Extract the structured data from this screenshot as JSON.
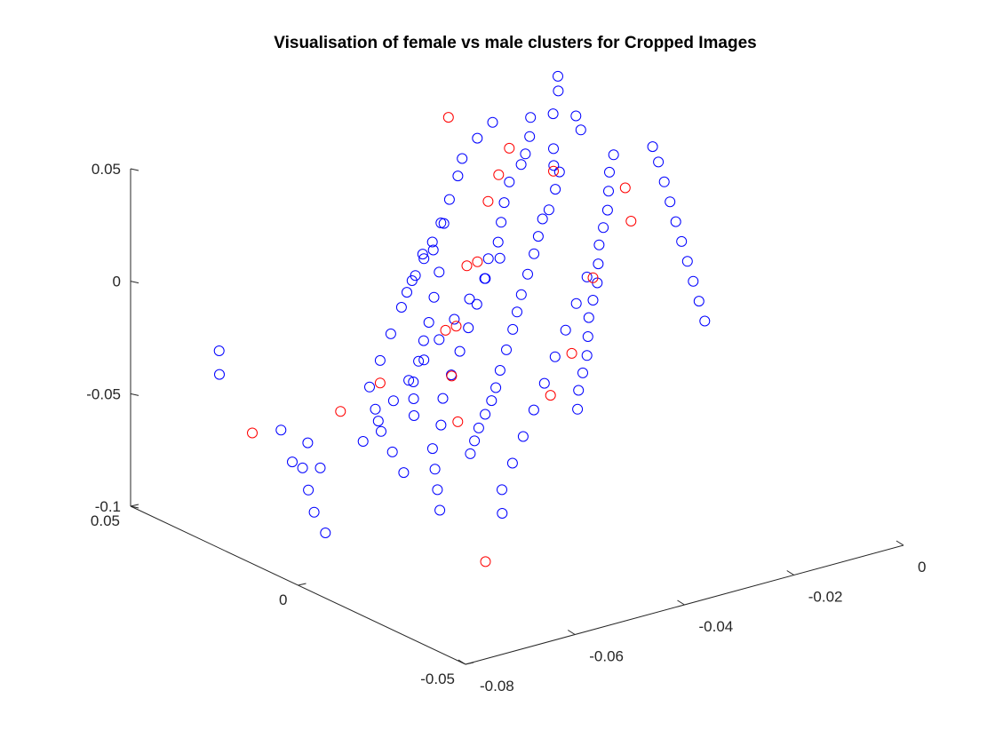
{
  "chart_data": {
    "type": "scatter",
    "projection": "3d",
    "title": "Visualisation of female vs male clusters for Cropped Images",
    "grid": false,
    "legend": "none",
    "marker": "open-circle",
    "axes": {
      "x": {
        "ticks": [
          -0.08,
          -0.06,
          -0.04,
          -0.02,
          0
        ],
        "tick_labels": [
          "-0.08",
          "-0.06",
          "-0.04",
          "-0.02",
          "0"
        ],
        "range": [
          -0.08,
          0
        ]
      },
      "y": {
        "ticks": [
          -0.05,
          0,
          0.05
        ],
        "tick_labels": [
          "-0.05",
          "0",
          "0.05"
        ],
        "range": [
          -0.05,
          0.05
        ]
      },
      "z": {
        "ticks": [
          -0.1,
          -0.05,
          0,
          0.05
        ],
        "tick_labels": [
          "-0.1",
          "-0.05",
          "0",
          "0.05"
        ],
        "range": [
          -0.1,
          0.05
        ]
      }
    },
    "series": [
      {
        "color": "#0000ff",
        "sampled": true,
        "points": [
          [
            -0.005,
            0.045,
            0.045
          ],
          [
            -0.008,
            0.04,
            0.044
          ],
          [
            -0.012,
            0.035,
            0.04
          ],
          [
            -0.006,
            0.038,
            0.033
          ],
          [
            -0.01,
            0.03,
            0.035
          ],
          [
            -0.015,
            0.03,
            0.03
          ],
          [
            -0.018,
            0.025,
            0.028
          ],
          [
            -0.02,
            0.02,
            0.03
          ],
          [
            -0.022,
            0.018,
            0.025
          ],
          [
            -0.025,
            0.015,
            0.02
          ],
          [
            -0.028,
            0.012,
            0.02
          ],
          [
            -0.03,
            0.01,
            0.015
          ],
          [
            -0.032,
            0.008,
            0.01
          ],
          [
            -0.035,
            0.005,
            0.005
          ],
          [
            -0.038,
            0.002,
            0.0
          ],
          [
            -0.04,
            0.0,
            -0.005
          ],
          [
            -0.042,
            -0.002,
            -0.01
          ],
          [
            -0.045,
            -0.005,
            -0.015
          ],
          [
            -0.048,
            -0.008,
            -0.02
          ],
          [
            -0.05,
            -0.01,
            -0.025
          ],
          [
            -0.052,
            -0.012,
            -0.028
          ],
          [
            -0.055,
            -0.015,
            -0.03
          ],
          [
            -0.058,
            -0.018,
            -0.032
          ],
          [
            -0.06,
            -0.02,
            -0.035
          ],
          [
            -0.062,
            -0.022,
            -0.038
          ],
          [
            -0.01,
            0.045,
            0.03
          ],
          [
            -0.012,
            0.042,
            0.025
          ],
          [
            -0.014,
            0.04,
            0.02
          ],
          [
            -0.016,
            0.038,
            0.018
          ],
          [
            -0.02,
            0.035,
            0.015
          ],
          [
            -0.024,
            0.03,
            0.012
          ],
          [
            -0.027,
            0.026,
            0.008
          ],
          [
            -0.03,
            0.022,
            0.004
          ],
          [
            -0.033,
            0.02,
            0.0
          ],
          [
            -0.036,
            0.016,
            -0.004
          ],
          [
            -0.04,
            0.012,
            -0.01
          ],
          [
            -0.044,
            0.008,
            -0.015
          ],
          [
            -0.048,
            0.004,
            -0.02
          ],
          [
            -0.052,
            0.0,
            -0.025
          ],
          [
            -0.056,
            -0.004,
            -0.03
          ],
          [
            -0.06,
            -0.01,
            -0.035
          ],
          [
            -0.064,
            -0.014,
            -0.04
          ],
          [
            -0.066,
            -0.018,
            -0.045
          ],
          [
            -0.068,
            -0.022,
            -0.05
          ],
          [
            -0.07,
            -0.026,
            -0.055
          ],
          [
            -0.004,
            0.03,
            0.02
          ],
          [
            -0.006,
            0.028,
            0.015
          ],
          [
            -0.008,
            0.025,
            0.01
          ],
          [
            -0.01,
            0.022,
            0.005
          ],
          [
            -0.012,
            0.02,
            0.0
          ],
          [
            -0.014,
            0.018,
            -0.005
          ],
          [
            -0.016,
            0.015,
            -0.01
          ],
          [
            -0.018,
            0.012,
            -0.015
          ],
          [
            -0.02,
            0.01,
            -0.02
          ],
          [
            -0.022,
            0.008,
            -0.025
          ],
          [
            -0.024,
            0.005,
            -0.03
          ],
          [
            -0.026,
            0.002,
            -0.035
          ],
          [
            -0.028,
            0.0,
            -0.04
          ],
          [
            -0.03,
            -0.002,
            -0.045
          ],
          [
            -0.032,
            -0.005,
            -0.05
          ],
          [
            -0.045,
            0.02,
            0.01
          ],
          [
            -0.05,
            0.015,
            0.005
          ],
          [
            -0.055,
            0.01,
            0.0
          ],
          [
            -0.06,
            0.005,
            -0.005
          ],
          [
            -0.065,
            0.0,
            -0.01
          ],
          [
            -0.07,
            -0.005,
            -0.015
          ],
          [
            -0.072,
            -0.01,
            -0.02
          ],
          [
            -0.074,
            -0.015,
            -0.025
          ],
          [
            -0.075,
            -0.02,
            -0.03
          ],
          [
            -0.076,
            -0.025,
            -0.035
          ],
          [
            -0.035,
            0.03,
            0.01
          ],
          [
            -0.04,
            0.025,
            0.005
          ],
          [
            -0.042,
            0.02,
            0.0
          ],
          [
            -0.046,
            0.015,
            -0.005
          ],
          [
            -0.05,
            0.01,
            -0.01
          ],
          [
            -0.054,
            0.005,
            -0.012
          ],
          [
            -0.058,
            0.0,
            -0.015
          ],
          [
            -0.062,
            -0.005,
            -0.018
          ],
          [
            -0.065,
            -0.01,
            -0.02
          ],
          [
            -0.068,
            -0.015,
            -0.022
          ],
          [
            -0.02,
            0.04,
            0.038
          ],
          [
            -0.024,
            0.038,
            0.035
          ],
          [
            -0.028,
            0.036,
            0.03
          ],
          [
            -0.03,
            0.034,
            0.025
          ],
          [
            -0.034,
            0.03,
            0.02
          ],
          [
            -0.038,
            0.026,
            0.015
          ],
          [
            -0.042,
            0.022,
            0.012
          ],
          [
            -0.046,
            0.018,
            0.01
          ],
          [
            -0.05,
            0.014,
            0.008
          ],
          [
            -0.054,
            0.01,
            0.006
          ],
          [
            -0.015,
            0.02,
            -0.02
          ],
          [
            -0.02,
            0.015,
            -0.025
          ],
          [
            -0.025,
            0.01,
            -0.03
          ],
          [
            -0.03,
            0.005,
            -0.035
          ],
          [
            -0.035,
            0.0,
            -0.04
          ],
          [
            -0.04,
            -0.005,
            -0.045
          ],
          [
            -0.045,
            -0.01,
            -0.05
          ],
          [
            -0.05,
            -0.015,
            -0.055
          ],
          [
            -0.055,
            -0.02,
            -0.06
          ],
          [
            -0.058,
            -0.025,
            -0.065
          ],
          [
            -0.003,
            0.02,
            0.03
          ],
          [
            -0.005,
            0.015,
            0.028
          ],
          [
            -0.007,
            0.01,
            0.024
          ],
          [
            -0.009,
            0.005,
            0.02
          ],
          [
            -0.011,
            0.0,
            0.016
          ],
          [
            -0.013,
            -0.005,
            0.012
          ],
          [
            -0.015,
            -0.01,
            0.008
          ],
          [
            -0.017,
            -0.015,
            0.004
          ],
          [
            -0.019,
            -0.02,
            0.0
          ],
          [
            -0.021,
            -0.025,
            -0.004
          ],
          [
            -0.026,
            0.028,
            -0.01
          ],
          [
            -0.03,
            0.026,
            -0.015
          ],
          [
            -0.034,
            0.024,
            -0.02
          ],
          [
            -0.038,
            0.022,
            -0.025
          ],
          [
            -0.042,
            0.02,
            -0.03
          ],
          [
            -0.046,
            0.018,
            -0.035
          ],
          [
            -0.05,
            0.016,
            -0.04
          ],
          [
            -0.054,
            0.014,
            -0.045
          ],
          [
            -0.058,
            0.012,
            -0.05
          ],
          [
            -0.062,
            0.01,
            -0.055
          ],
          [
            -0.066,
            0.02,
            -0.06
          ],
          [
            -0.07,
            0.015,
            -0.065
          ],
          [
            -0.072,
            0.01,
            -0.07
          ],
          [
            -0.074,
            0.005,
            -0.075
          ],
          [
            -0.075,
            0.0,
            -0.08
          ],
          [
            -0.078,
            0.005,
            -0.05
          ],
          [
            -0.079,
            -0.005,
            -0.045
          ],
          [
            -0.077,
            0.01,
            -0.04
          ],
          [
            -0.076,
            0.03,
            -0.03
          ],
          [
            -0.073,
            0.035,
            -0.025
          ]
        ]
      },
      {
        "color": "#ff0000",
        "sampled": true,
        "points": [
          [
            -0.02,
            0.035,
            0.03
          ],
          [
            -0.025,
            0.03,
            0.025
          ],
          [
            -0.03,
            0.025,
            0.02
          ],
          [
            -0.04,
            0.015,
            0.005
          ],
          [
            -0.05,
            0.005,
            -0.01
          ],
          [
            -0.055,
            -0.005,
            -0.02
          ],
          [
            -0.06,
            -0.015,
            -0.03
          ],
          [
            -0.045,
            0.01,
            -0.015
          ],
          [
            -0.035,
            0.02,
            0.0
          ],
          [
            -0.015,
            0.03,
            0.02
          ],
          [
            -0.01,
            0.015,
            0.005
          ],
          [
            -0.03,
            0.0,
            -0.03
          ],
          [
            -0.065,
            0.0,
            -0.02
          ],
          [
            -0.06,
            0.02,
            -0.05
          ],
          [
            -0.02,
            0.01,
            -0.01
          ],
          [
            -0.058,
            -0.02,
            -0.09
          ],
          [
            -0.07,
            0.03,
            -0.06
          ],
          [
            -0.025,
            0.045,
            0.04
          ],
          [
            -0.008,
            0.02,
            0.015
          ],
          [
            -0.04,
            -0.01,
            -0.035
          ]
        ]
      }
    ]
  }
}
